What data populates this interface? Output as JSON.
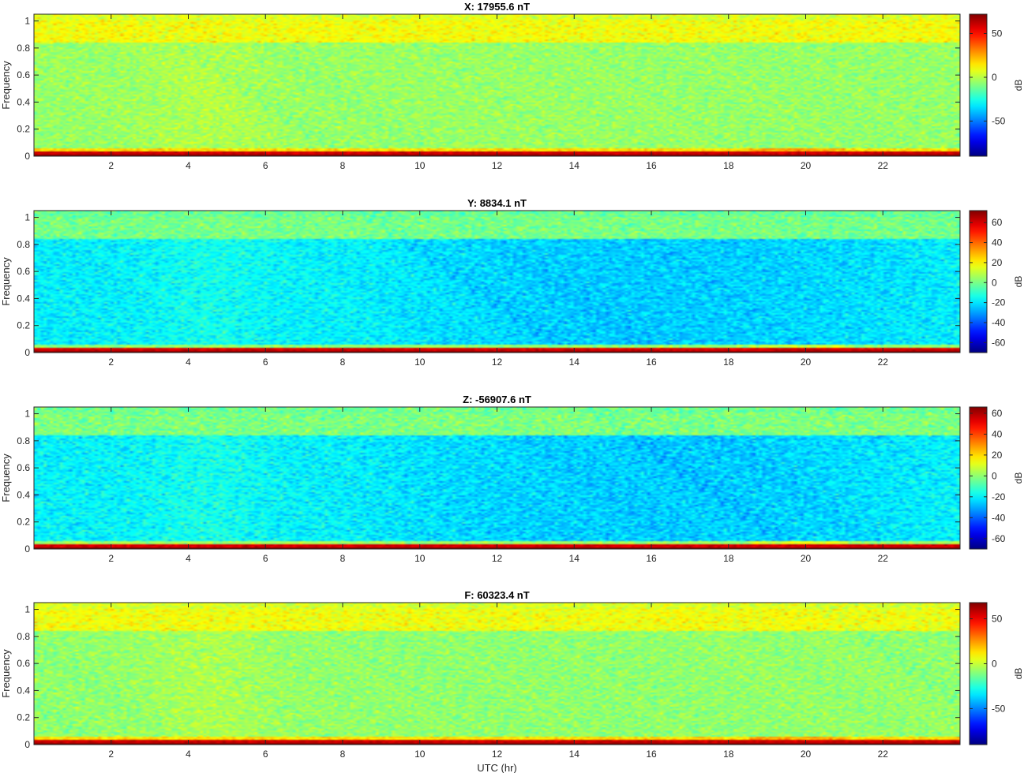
{
  "chart_data": [
    {
      "type": "heatmap",
      "title": "X: 17955.6 nT",
      "ylabel": "Frequency",
      "xlabel": "",
      "xlim": [
        0,
        24
      ],
      "ylim": [
        0,
        1.05
      ],
      "xticks": [
        "2",
        "4",
        "6",
        "8",
        "10",
        "12",
        "14",
        "16",
        "18",
        "20",
        "22"
      ],
      "yticks": [
        "0",
        "0.2",
        "0.4",
        "0.6",
        "0.8",
        "1"
      ],
      "colorbar": {
        "label": "dB",
        "range": [
          -90,
          72
        ],
        "ticks": [
          50,
          0,
          -50
        ]
      },
      "colormap": "jet",
      "grid": false,
      "description_levels": {
        "background_db": -5,
        "high_band_db": 8,
        "low_freq_db": 72
      }
    },
    {
      "type": "heatmap",
      "title": "Y: 8834.1 nT",
      "ylabel": "Frequency",
      "xlabel": "",
      "xlim": [
        0,
        24
      ],
      "ylim": [
        0,
        1.05
      ],
      "xticks": [
        "2",
        "4",
        "6",
        "8",
        "10",
        "12",
        "14",
        "16",
        "18",
        "20",
        "22"
      ],
      "yticks": [
        "0",
        "0.2",
        "0.4",
        "0.6",
        "0.8",
        "1"
      ],
      "colorbar": {
        "label": "dB",
        "range": [
          -70,
          72
        ],
        "ticks": [
          60,
          40,
          20,
          0,
          -20,
          -40,
          -60
        ]
      },
      "colormap": "jet",
      "grid": false,
      "description_levels": {
        "background_db": -18,
        "high_band_db": 0,
        "low_freq_db": 72
      }
    },
    {
      "type": "heatmap",
      "title": "Z: -56907.6 nT",
      "ylabel": "Frequency",
      "xlabel": "",
      "xlim": [
        0,
        24
      ],
      "ylim": [
        0,
        1.05
      ],
      "xticks": [
        "2",
        "4",
        "6",
        "8",
        "10",
        "12",
        "14",
        "16",
        "18",
        "20",
        "22"
      ],
      "yticks": [
        "0",
        "0.2",
        "0.4",
        "0.6",
        "0.8",
        "1"
      ],
      "colorbar": {
        "label": "dB",
        "range": [
          -70,
          66
        ],
        "ticks": [
          60,
          40,
          20,
          0,
          -20,
          -40,
          -60
        ]
      },
      "colormap": "jet",
      "grid": false,
      "description_levels": {
        "background_db": -20,
        "high_band_db": -2,
        "low_freq_db": 66
      }
    },
    {
      "type": "heatmap",
      "title": "F: 60323.4 nT",
      "ylabel": "Frequency",
      "xlabel": "UTC (hr)",
      "xlim": [
        0,
        24
      ],
      "ylim": [
        0,
        1.05
      ],
      "xticks": [
        "2",
        "4",
        "6",
        "8",
        "10",
        "12",
        "14",
        "16",
        "18",
        "20",
        "22"
      ],
      "yticks": [
        "0",
        "0.2",
        "0.4",
        "0.6",
        "0.8",
        "1"
      ],
      "colorbar": {
        "label": "dB",
        "range": [
          -90,
          68
        ],
        "ticks": [
          50,
          0,
          -50
        ]
      },
      "colormap": "jet",
      "grid": false,
      "description_levels": {
        "background_db": -8,
        "high_band_db": 5,
        "low_freq_db": 68
      }
    }
  ]
}
